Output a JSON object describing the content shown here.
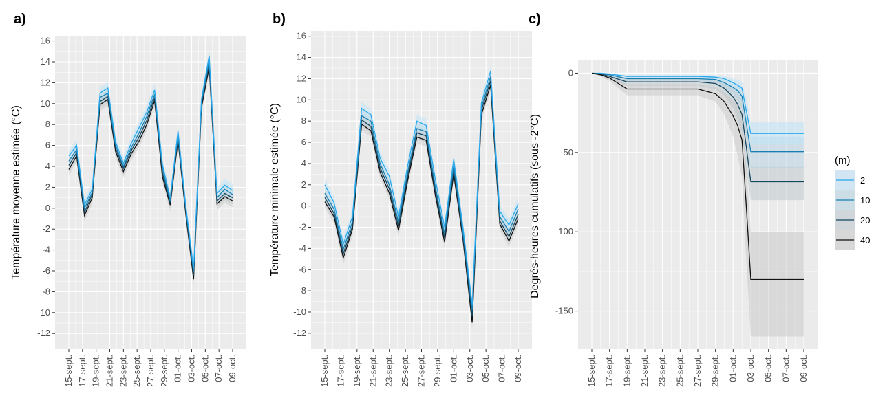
{
  "chart_data": [
    {
      "panel_label": "a)",
      "type": "line",
      "ylabel": "Température moyenne estimée (°C)",
      "xlabel": "",
      "x_ticks": [
        "15-sept.",
        "17-sept.",
        "19-sept.",
        "21-sept.",
        "23-sept.",
        "25-sept.",
        "27-sept.",
        "29-sept.",
        "01-oct.",
        "03-oct.",
        "05-oct.",
        "07-oct.",
        "09-oct."
      ],
      "y_ticks": [
        16,
        14,
        12,
        10,
        8,
        6,
        4,
        2,
        0,
        -2,
        -4,
        -6,
        -8,
        -10,
        -12
      ],
      "ylim": [
        -13.5,
        16.5
      ],
      "n_days": 25,
      "series": [
        {
          "depth": "2",
          "color": "#29a8ec",
          "values": [
            5.0,
            6.0,
            0.3,
            1.8,
            11.0,
            11.5,
            6.3,
            4.3,
            6.2,
            7.7,
            9.2,
            11.3,
            4.2,
            1.0,
            7.4,
            0.2,
            -5.8,
            10.4,
            14.6,
            1.4,
            2.2,
            1.7
          ]
        },
        {
          "depth": "10",
          "color": "#1a7fb0",
          "values": [
            4.5,
            5.6,
            0.0,
            1.5,
            10.6,
            11.0,
            6.0,
            4.0,
            5.8,
            7.2,
            8.8,
            10.9,
            3.8,
            0.7,
            7.0,
            -0.1,
            -6.1,
            10.1,
            14.1,
            1.0,
            1.8,
            1.3
          ]
        },
        {
          "depth": "20",
          "color": "#15465f",
          "values": [
            4.1,
            5.3,
            -0.4,
            1.3,
            10.2,
            10.7,
            5.7,
            3.8,
            5.5,
            6.8,
            8.4,
            10.6,
            3.4,
            0.5,
            6.8,
            -0.3,
            -6.4,
            9.9,
            13.8,
            0.7,
            1.4,
            1.0
          ]
        },
        {
          "depth": "40",
          "color": "#111111",
          "values": [
            3.7,
            5.0,
            -0.7,
            1.0,
            9.9,
            10.4,
            5.4,
            3.5,
            5.2,
            6.4,
            8.0,
            10.3,
            3.0,
            0.3,
            6.5,
            -0.6,
            -6.8,
            9.6,
            13.5,
            0.4,
            1.1,
            0.7
          ]
        }
      ]
    },
    {
      "panel_label": "b)",
      "type": "line",
      "ylabel": "Température minimale estimée (°C)",
      "xlabel": "",
      "x_ticks": [
        "15-sept.",
        "17-sept.",
        "19-sept.",
        "21-sept.",
        "23-sept.",
        "25-sept.",
        "27-sept.",
        "29-sept.",
        "01-oct.",
        "03-oct.",
        "05-oct.",
        "07-oct.",
        "09-oct."
      ],
      "y_ticks": [
        16,
        14,
        12,
        10,
        8,
        6,
        4,
        2,
        0,
        -2,
        -4,
        -6,
        -8,
        -10,
        -12
      ],
      "ylim": [
        -13.5,
        16.5
      ],
      "n_days": 25,
      "series": [
        {
          "depth": "2",
          "color": "#29a8ec",
          "values": [
            2.0,
            0.3,
            -3.6,
            -1.0,
            9.2,
            8.6,
            4.5,
            2.8,
            -1.0,
            3.8,
            8.0,
            7.6,
            2.5,
            -2.0,
            4.4,
            -2.0,
            -9.3,
            9.7,
            12.7,
            -0.5,
            -1.8,
            0.2
          ]
        },
        {
          "depth": "10",
          "color": "#1a7fb0",
          "values": [
            1.2,
            -0.3,
            -4.1,
            -1.5,
            8.5,
            8.0,
            4.0,
            2.0,
            -1.5,
            3.2,
            7.3,
            7.0,
            1.8,
            -2.6,
            3.8,
            -2.5,
            -9.8,
            9.3,
            12.2,
            -1.0,
            -2.4,
            -0.3
          ]
        },
        {
          "depth": "20",
          "color": "#15465f",
          "values": [
            0.8,
            -0.7,
            -4.5,
            -1.9,
            8.1,
            7.5,
            3.6,
            1.6,
            -1.9,
            2.8,
            6.9,
            6.6,
            1.4,
            -3.0,
            3.4,
            -2.8,
            -10.4,
            9.0,
            11.8,
            -1.4,
            -2.9,
            -0.8
          ]
        },
        {
          "depth": "40",
          "color": "#111111",
          "values": [
            0.4,
            -1.0,
            -4.9,
            -2.2,
            7.7,
            7.1,
            3.2,
            1.2,
            -2.3,
            2.4,
            6.5,
            6.2,
            1.0,
            -3.4,
            3.0,
            -3.1,
            -11.0,
            8.6,
            11.4,
            -1.7,
            -3.3,
            -1.2
          ]
        }
      ]
    },
    {
      "panel_label": "c)",
      "type": "area",
      "ylabel": "Degrés-heures cumulatifs (sous -2°C)",
      "xlabel": "",
      "x_ticks": [
        "15-sept.",
        "17-sept.",
        "19-sept.",
        "21-sept.",
        "23-sept.",
        "25-sept.",
        "27-sept.",
        "29-sept.",
        "01-oct.",
        "03-oct.",
        "05-oct.",
        "07-oct.",
        "09-oct."
      ],
      "y_ticks": [
        0,
        -50,
        -100,
        -150
      ],
      "ylim": [
        -174,
        8
      ],
      "n_days": 25,
      "legend_position": "right",
      "legend_title": "(m)",
      "series": [
        {
          "depth": "2",
          "color": "#29a8ec",
          "x": [
            0,
            1,
            2,
            4,
            6,
            8,
            10,
            12,
            14,
            15,
            16,
            16.5,
            17,
            17.5,
            18,
            20,
            22,
            24
          ],
          "values": [
            0,
            0,
            -0.5,
            -2,
            -2,
            -2,
            -2,
            -2,
            -2.5,
            -3.5,
            -6,
            -7.5,
            -9.5,
            -24,
            -38,
            -38,
            -38,
            -38
          ],
          "lower": [
            0,
            -0.5,
            -1.5,
            -3,
            -3,
            -3,
            -3,
            -3,
            -4,
            -6,
            -9,
            -12,
            -14,
            -30,
            -45,
            -45,
            -45,
            -45
          ],
          "upper": [
            0,
            0,
            0,
            -1,
            -1,
            -1,
            -1,
            -1,
            -1.5,
            -2,
            -3.5,
            -4,
            -5.5,
            -16,
            -31,
            -31,
            -31,
            -31
          ]
        },
        {
          "depth": "10",
          "color": "#1a7fb0",
          "x": [
            0,
            1,
            2,
            4,
            6,
            8,
            10,
            12,
            14,
            15,
            16,
            16.5,
            17,
            17.5,
            18,
            20,
            22,
            24
          ],
          "values": [
            0,
            -0.5,
            -1,
            -3.5,
            -3.5,
            -3.5,
            -3.5,
            -3.5,
            -4,
            -6,
            -9,
            -11,
            -14.5,
            -32,
            -49.5,
            -49.5,
            -49.5,
            -49.5
          ],
          "lower": [
            0,
            -1,
            -2,
            -5,
            -5,
            -5,
            -5,
            -5,
            -6,
            -9,
            -13,
            -17,
            -22,
            -42,
            -60,
            -60,
            -60,
            -60
          ],
          "upper": [
            0,
            0,
            0,
            -2,
            -2,
            -2,
            -2,
            -2,
            -2.5,
            -3.5,
            -5.5,
            -7,
            -9,
            -24,
            -40,
            -40,
            -40,
            -40
          ]
        },
        {
          "depth": "20",
          "color": "#15465f",
          "x": [
            0,
            1,
            2,
            4,
            6,
            8,
            10,
            12,
            14,
            15,
            16,
            16.5,
            17,
            17.5,
            18,
            20,
            22,
            24
          ],
          "values": [
            0,
            -0.5,
            -2,
            -5.5,
            -5.5,
            -5.5,
            -5.5,
            -5.5,
            -6.5,
            -9.5,
            -15,
            -19.5,
            -26,
            -47,
            -68.5,
            -68.5,
            -68.5,
            -68.5
          ],
          "lower": [
            0,
            -1.5,
            -3.5,
            -8,
            -8,
            -8,
            -8,
            -8,
            -10,
            -14,
            -22,
            -29,
            -38,
            -62,
            -80,
            -80,
            -80,
            -80
          ],
          "upper": [
            0,
            0,
            -0.5,
            -3,
            -3,
            -3,
            -3,
            -3,
            -4,
            -6,
            -9,
            -12,
            -16,
            -34,
            -59,
            -59,
            -59,
            -59
          ]
        },
        {
          "depth": "40",
          "color": "#111111",
          "x": [
            0,
            1,
            2,
            4,
            6,
            8,
            10,
            12,
            14,
            15,
            16,
            16.5,
            17,
            17.5,
            18,
            20,
            22,
            24
          ],
          "values": [
            0,
            -1,
            -3,
            -10,
            -10,
            -10,
            -10,
            -10,
            -13,
            -18,
            -27,
            -33,
            -42,
            -85,
            -130,
            -130,
            -130,
            -130
          ],
          "lower": [
            0,
            -2,
            -5,
            -14,
            -14,
            -14,
            -14,
            -14,
            -18,
            -26,
            -40,
            -52,
            -66,
            -120,
            -166,
            -166,
            -166,
            -166
          ],
          "upper": [
            0,
            0,
            -1,
            -7,
            -7,
            -7,
            -7,
            -7,
            -9,
            -12,
            -17,
            -20,
            -25,
            -60,
            -100,
            -100,
            -100,
            -100
          ]
        }
      ]
    }
  ]
}
